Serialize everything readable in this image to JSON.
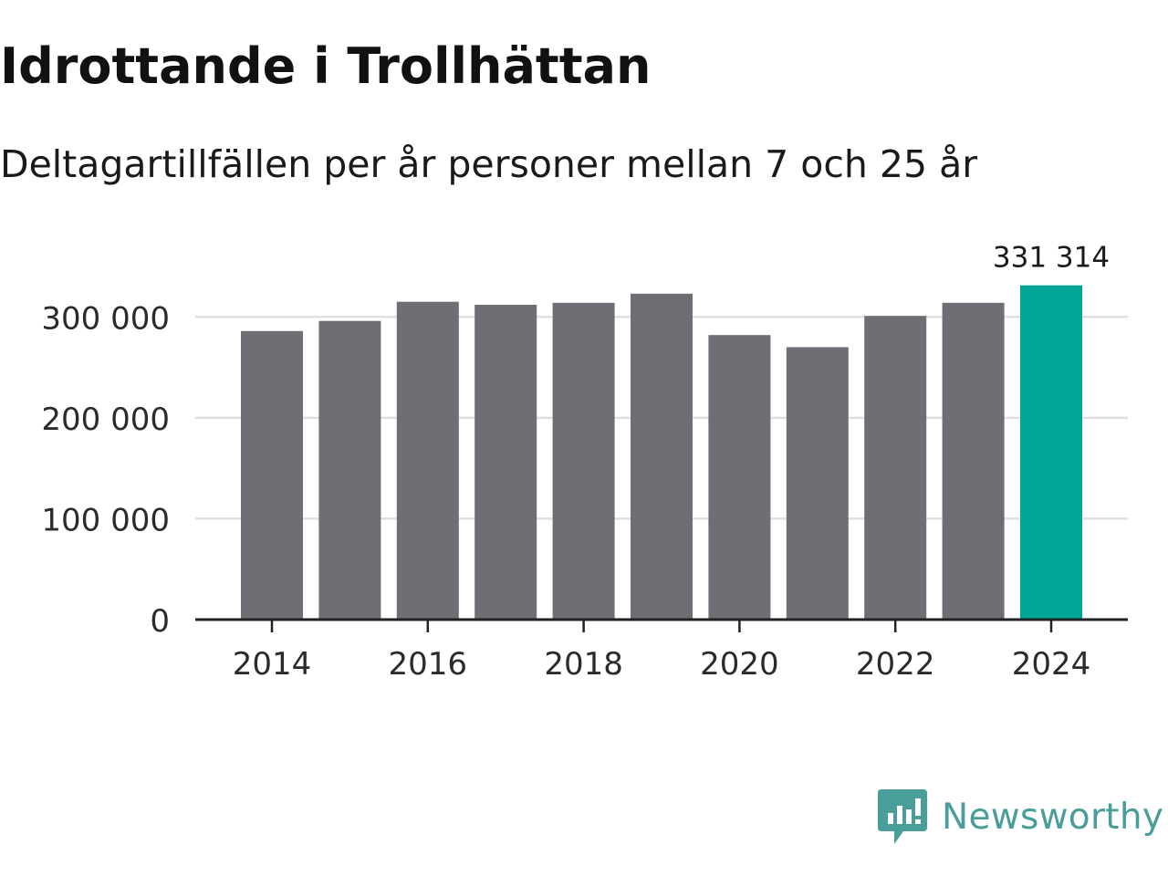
{
  "header": {
    "title": "Idrottande i Trollhättan",
    "subtitle": "Deltagartillfällen per år personer mellan 7 och 25 år"
  },
  "chart_data": {
    "type": "bar",
    "title": "Idrottande i Trollhättan",
    "subtitle": "Deltagartillfällen per år personer mellan 7 och 25 år",
    "xlabel": "",
    "ylabel": "",
    "categories": [
      "2014",
      "2015",
      "2016",
      "2017",
      "2018",
      "2019",
      "2020",
      "2021",
      "2022",
      "2023",
      "2024"
    ],
    "values": [
      286000,
      296000,
      315000,
      312000,
      314000,
      323000,
      282000,
      270000,
      301000,
      314000,
      331314
    ],
    "ylim": [
      0,
      350000
    ],
    "yticks": [
      0,
      100000,
      200000,
      300000
    ],
    "ytick_labels": [
      "0",
      "100 000",
      "200 000",
      "300 000"
    ],
    "xticks": [
      "2014",
      "2016",
      "2018",
      "2020",
      "2022",
      "2024"
    ],
    "grid": true,
    "highlight_category": "2024",
    "highlight_label": "331 314",
    "colors": {
      "bar": "#6f6e75",
      "highlight": "#00a598",
      "grid": "#e0e0e0",
      "axis": "#222222",
      "text": "#1a1a1a"
    }
  },
  "brand": {
    "name": "Newsworthy",
    "logo_icon": "newsworthy-logo-icon",
    "color": "#4a9e9a"
  }
}
